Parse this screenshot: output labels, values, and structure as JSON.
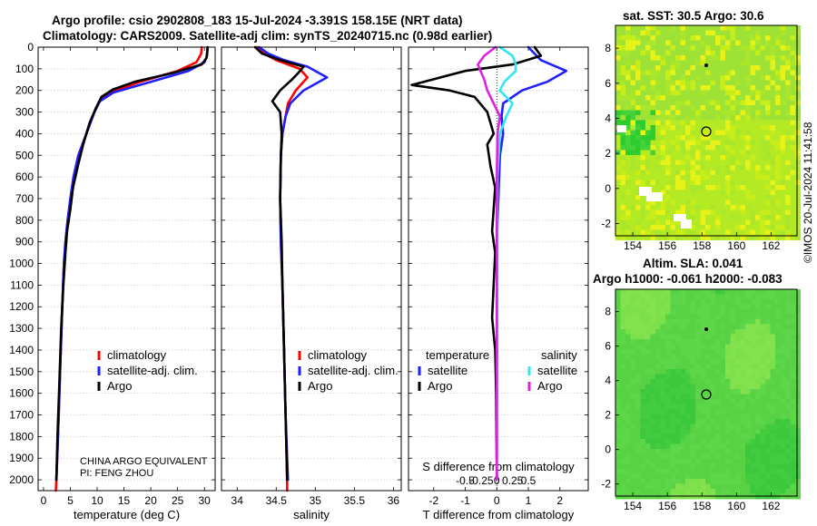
{
  "header": {
    "line1": "Argo profile: csio 2902808_183 15-Jul-2024 -3.391S 158.15E (NRT data)",
    "line2": "Climatology: CARS2009. Satellite-adj clim: synTS_20240715.nc (0.98d earlier)"
  },
  "sst_map": {
    "title": "sat. SST: 30.5 Argo: 30.6",
    "xticks": [
      "154",
      "156",
      "158",
      "160",
      "162"
    ],
    "yticks": [
      "8",
      "6",
      "4",
      "2",
      "0",
      "-2"
    ]
  },
  "sla_map": {
    "title1": "Altim. SLA: 0.041",
    "title2": "Argo h1000: -0.061 h2000: -0.083",
    "xticks": [
      "154",
      "156",
      "158",
      "160",
      "162"
    ],
    "yticks": [
      "8",
      "6",
      "4",
      "2",
      "0",
      "-2"
    ]
  },
  "stamp": "©IMOS 20-Jul-2024 11:41:58",
  "credit": {
    "line1": "CHINA ARGO EQUIVALENT",
    "line2": "PI: FENG ZHOU"
  },
  "colors": {
    "climatology": "#ff0000",
    "satellite": "#1f1fff",
    "argo": "#000000",
    "sat_salinity": "#33e6f0",
    "argo_salinity": "#e020e0"
  },
  "chart_data": [
    {
      "type": "line",
      "title": "",
      "xlabel": "temperature (deg C)",
      "ylabel": "",
      "xlim": [
        -1,
        32
      ],
      "ylim": [
        2050,
        0
      ],
      "x_ticks": [
        "0",
        "5",
        "10",
        "15",
        "20",
        "25",
        "30"
      ],
      "y_ticks": [
        "0",
        "100",
        "200",
        "300",
        "400",
        "500",
        "600",
        "700",
        "800",
        "900",
        "1000",
        "1100",
        "1200",
        "1300",
        "1400",
        "1500",
        "1600",
        "1700",
        "1800",
        "1900",
        "2000"
      ],
      "legend": [
        "climatology",
        "satellite-adj. clim.",
        "Argo"
      ],
      "series": [
        {
          "name": "climatology",
          "color": "red",
          "points": [
            [
              29.5,
              0
            ],
            [
              29.4,
              30
            ],
            [
              28.5,
              70
            ],
            [
              25,
              110
            ],
            [
              18,
              160
            ],
            [
              12.5,
              210
            ],
            [
              10.5,
              250
            ],
            [
              9.5,
              300
            ],
            [
              8,
              400
            ],
            [
              6.5,
              500
            ],
            [
              5.6,
              600
            ],
            [
              5,
              700
            ],
            [
              4.5,
              800
            ],
            [
              4.1,
              900
            ],
            [
              3.8,
              1000
            ],
            [
              3.5,
              1200
            ],
            [
              3.1,
              1500
            ],
            [
              2.7,
              1800
            ],
            [
              2.4,
              2000
            ],
            [
              2.3,
              2050
            ]
          ]
        },
        {
          "name": "satellite-adj. clim.",
          "color": "blue",
          "points": [
            [
              30.6,
              0
            ],
            [
              30.5,
              40
            ],
            [
              30,
              70
            ],
            [
              27,
              110
            ],
            [
              20,
              160
            ],
            [
              13,
              210
            ],
            [
              10.5,
              250
            ],
            [
              9.5,
              300
            ],
            [
              8,
              400
            ],
            [
              6.5,
              500
            ],
            [
              5.6,
              600
            ],
            [
              5,
              700
            ],
            [
              4.5,
              800
            ],
            [
              4.1,
              900
            ],
            [
              3.8,
              1000
            ],
            [
              3.5,
              1200
            ],
            [
              3.1,
              1500
            ],
            [
              2.7,
              1800
            ],
            [
              2.4,
              2000
            ]
          ]
        },
        {
          "name": "Argo",
          "color": "black",
          "points": [
            [
              30.6,
              0
            ],
            [
              30.4,
              50
            ],
            [
              29.5,
              80
            ],
            [
              24,
              120
            ],
            [
              17,
              160
            ],
            [
              13,
              195
            ],
            [
              10.8,
              230
            ],
            [
              9.8,
              280
            ],
            [
              8.6,
              350
            ],
            [
              7.4,
              450
            ],
            [
              6.4,
              550
            ],
            [
              5.5,
              650
            ],
            [
              5,
              750
            ],
            [
              4.4,
              850
            ],
            [
              4.1,
              950
            ],
            [
              3.7,
              1100
            ],
            [
              3.3,
              1300
            ],
            [
              2.9,
              1600
            ],
            [
              2.6,
              1800
            ],
            [
              2.4,
              2000
            ]
          ]
        }
      ]
    },
    {
      "type": "line",
      "title": "",
      "xlabel": "salinity",
      "ylabel": "",
      "xlim": [
        33.8,
        36.1
      ],
      "ylim": [
        2050,
        0
      ],
      "x_ticks": [
        "34",
        "34.5",
        "35",
        "35.5",
        "36"
      ],
      "legend": [
        "climatology",
        "satellite-adj. clim.",
        "Argo"
      ],
      "series": [
        {
          "name": "climatology",
          "color": "red",
          "points": [
            [
              34.25,
              0
            ],
            [
              34.35,
              30
            ],
            [
              34.5,
              60
            ],
            [
              34.8,
              100
            ],
            [
              34.9,
              140
            ],
            [
              34.75,
              200
            ],
            [
              34.65,
              260
            ],
            [
              34.62,
              320
            ],
            [
              34.58,
              400
            ],
            [
              34.56,
              500
            ],
            [
              34.55,
              700
            ],
            [
              34.56,
              900
            ],
            [
              34.58,
              1100
            ],
            [
              34.6,
              1400
            ],
            [
              34.62,
              1700
            ],
            [
              34.64,
              2000
            ],
            [
              34.64,
              2050
            ]
          ]
        },
        {
          "name": "satellite-adj. clim.",
          "color": "blue",
          "points": [
            [
              34.28,
              0
            ],
            [
              34.4,
              30
            ],
            [
              34.6,
              60
            ],
            [
              34.9,
              90
            ],
            [
              35.15,
              140
            ],
            [
              34.85,
              200
            ],
            [
              34.68,
              260
            ],
            [
              34.62,
              320
            ],
            [
              34.58,
              400
            ],
            [
              34.56,
              500
            ],
            [
              34.55,
              700
            ],
            [
              34.56,
              900
            ],
            [
              34.58,
              1100
            ],
            [
              34.6,
              1400
            ],
            [
              34.62,
              1700
            ],
            [
              34.65,
              2000
            ]
          ]
        },
        {
          "name": "Argo",
          "color": "black",
          "points": [
            [
              34.23,
              0
            ],
            [
              34.32,
              30
            ],
            [
              34.55,
              60
            ],
            [
              34.85,
              90
            ],
            [
              34.78,
              120
            ],
            [
              34.7,
              150
            ],
            [
              34.55,
              200
            ],
            [
              34.45,
              250
            ],
            [
              34.55,
              300
            ],
            [
              34.57,
              400
            ],
            [
              34.56,
              500
            ],
            [
              34.55,
              700
            ],
            [
              34.57,
              900
            ],
            [
              34.58,
              1100
            ],
            [
              34.6,
              1400
            ],
            [
              34.62,
              1700
            ],
            [
              34.64,
              2000
            ]
          ]
        }
      ]
    },
    {
      "type": "line",
      "title": "",
      "xlabel": "T difference from climatology",
      "ylabel": "",
      "xlim": [
        -2.8,
        2.9
      ],
      "ylim": [
        2050,
        0
      ],
      "x_ticks": [
        "-2",
        "-1",
        "0",
        "1",
        "2"
      ],
      "secondary_xlabel": "S difference from climatology",
      "secondary_xlim": [
        -1.4,
        1.45
      ],
      "secondary_x_ticks": [
        "-0.5",
        "-0.25",
        "0",
        "0.25",
        "0.5"
      ],
      "legend": [
        "temperature satellite",
        "temperature Argo",
        "salinity satellite",
        "salinity Argo"
      ],
      "legend_titles": [
        "temperature",
        "salinity"
      ],
      "series": [
        {
          "name": "temperature satellite",
          "color": "blue",
          "axis": "T",
          "points": [
            [
              1,
              0
            ],
            [
              1.2,
              30
            ],
            [
              1.4,
              60
            ],
            [
              2.2,
              110
            ],
            [
              1.6,
              160
            ],
            [
              0.8,
              200
            ],
            [
              0.2,
              260
            ],
            [
              0.15,
              320
            ],
            [
              0.2,
              400
            ],
            [
              0.1,
              500
            ],
            [
              0.05,
              700
            ],
            [
              0,
              900
            ],
            [
              0,
              1200
            ],
            [
              0,
              1600
            ],
            [
              0,
              2000
            ]
          ]
        },
        {
          "name": "temperature Argo",
          "color": "black",
          "axis": "T",
          "points": [
            [
              1.2,
              0
            ],
            [
              1.4,
              40
            ],
            [
              0.5,
              80
            ],
            [
              -1,
              110
            ],
            [
              -2.7,
              175
            ],
            [
              -1.5,
              200
            ],
            [
              -0.7,
              230
            ],
            [
              -0.3,
              300
            ],
            [
              -0.1,
              400
            ],
            [
              -0.3,
              450
            ],
            [
              -0.2,
              550
            ],
            [
              -0.05,
              650
            ],
            [
              -0.1,
              750
            ],
            [
              -0.15,
              850
            ],
            [
              -0.05,
              950
            ],
            [
              -0.1,
              1100
            ],
            [
              -0.15,
              1250
            ],
            [
              -0.05,
              1400
            ],
            [
              -0.02,
              1600
            ],
            [
              0,
              2000
            ]
          ]
        },
        {
          "name": "salinity satellite",
          "color": "cyan",
          "axis": "S",
          "points": [
            [
              0.05,
              0
            ],
            [
              0.25,
              40
            ],
            [
              0.3,
              80
            ],
            [
              0.3,
              110
            ],
            [
              0.12,
              160
            ],
            [
              0.05,
              200
            ],
            [
              0.25,
              260
            ],
            [
              0.15,
              320
            ],
            [
              0.05,
              400
            ],
            [
              0.01,
              600
            ],
            [
              0,
              2000
            ]
          ]
        },
        {
          "name": "salinity Argo",
          "color": "magenta",
          "axis": "S",
          "points": [
            [
              -0.02,
              0
            ],
            [
              -0.2,
              40
            ],
            [
              -0.3,
              80
            ],
            [
              -0.2,
              150
            ],
            [
              -0.15,
              200
            ],
            [
              -0.05,
              260
            ],
            [
              0.05,
              320
            ],
            [
              0.01,
              400
            ],
            [
              0,
              600
            ],
            [
              0,
              2000
            ]
          ]
        }
      ]
    }
  ]
}
